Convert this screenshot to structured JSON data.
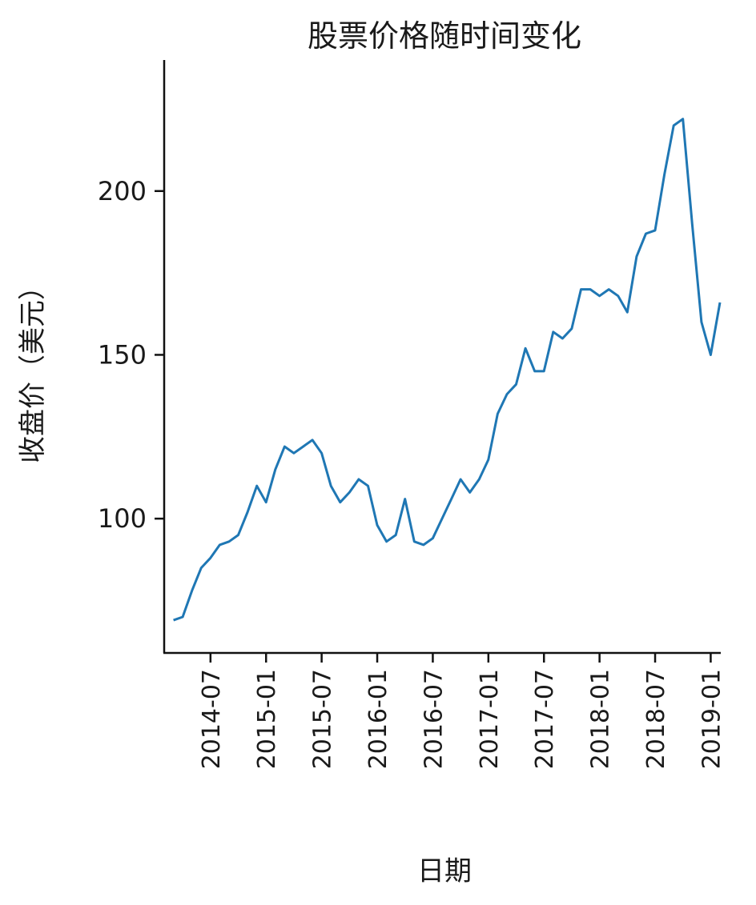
{
  "chart_data": {
    "type": "line",
    "title": "股票价格随时间变化",
    "xlabel": "日期",
    "ylabel": "收盘价（美元）",
    "x": [
      "2014-03",
      "2014-04",
      "2014-05",
      "2014-06",
      "2014-07",
      "2014-08",
      "2014-09",
      "2014-10",
      "2014-11",
      "2014-12",
      "2015-01",
      "2015-02",
      "2015-03",
      "2015-04",
      "2015-05",
      "2015-06",
      "2015-07",
      "2015-08",
      "2015-09",
      "2015-10",
      "2015-11",
      "2015-12",
      "2016-01",
      "2016-02",
      "2016-03",
      "2016-04",
      "2016-05",
      "2016-06",
      "2016-07",
      "2016-08",
      "2016-09",
      "2016-10",
      "2016-11",
      "2016-12",
      "2017-01",
      "2017-02",
      "2017-03",
      "2017-04",
      "2017-05",
      "2017-06",
      "2017-07",
      "2017-08",
      "2017-09",
      "2017-10",
      "2017-11",
      "2017-12",
      "2018-01",
      "2018-02",
      "2018-03",
      "2018-04",
      "2018-05",
      "2018-06",
      "2018-07",
      "2018-08",
      "2018-09",
      "2018-10",
      "2018-11",
      "2018-12",
      "2019-01",
      "2019-02"
    ],
    "series": [
      {
        "name": "收盘价",
        "color": "#1f77b4",
        "values": [
          69,
          70,
          78,
          85,
          88,
          92,
          93,
          95,
          102,
          110,
          105,
          115,
          122,
          120,
          122,
          124,
          120,
          110,
          105,
          108,
          112,
          110,
          98,
          93,
          95,
          106,
          93,
          92,
          94,
          100,
          106,
          112,
          108,
          112,
          118,
          132,
          138,
          141,
          152,
          145,
          145,
          157,
          155,
          158,
          170,
          170,
          168,
          170,
          168,
          163,
          180,
          187,
          188,
          205,
          220,
          222,
          190,
          160,
          150,
          166
        ]
      }
    ],
    "xlim": [
      "2014-02",
      "2019-02"
    ],
    "xticks": [
      "2014-07",
      "2015-01",
      "2015-07",
      "2016-01",
      "2016-07",
      "2017-01",
      "2017-07",
      "2018-01",
      "2018-07",
      "2019-01"
    ],
    "ylim": [
      59,
      240
    ],
    "yticks": [
      100,
      150,
      200
    ],
    "grid": false
  }
}
